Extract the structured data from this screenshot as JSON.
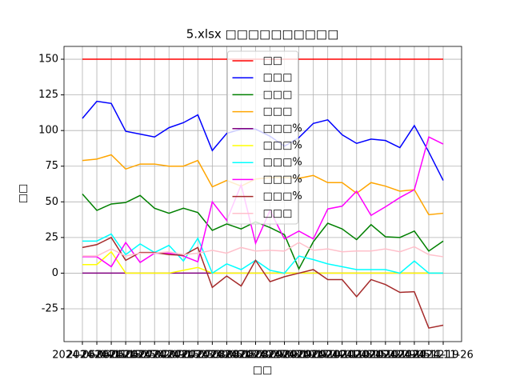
{
  "chart_data": {
    "type": "line",
    "title": "5.xlsx □□□□□□□□□□",
    "x_label": "□□",
    "y_label": "□□",
    "categories": [
      "2024-06-04",
      "2024-06-11",
      "2024-06-18",
      "2024-06-25",
      "2024-07-02",
      "2024-07-09",
      "2024-07-16",
      "2024-07-23",
      "2024-07-30",
      "2024-08-06",
      "2024-08-13",
      "2024-08-20",
      "2024-08-27",
      "2024-09-03",
      "2024-09-10",
      "2024-09-17",
      "2024-09-24",
      "2024-10-01",
      "2024-10-08",
      "2024-10-15",
      "2024-10-22",
      "2024-10-29",
      "2024-11-05",
      "2024-11-12",
      "2024-11-19",
      "2024-11-26"
    ],
    "ylim": [
      -48,
      159
    ],
    "yticks": [
      -25,
      0,
      25,
      50,
      75,
      100,
      125,
      150
    ],
    "grid": true,
    "legend": "upper center",
    "series": [
      {
        "name": "□□",
        "color": "red",
        "values": [
          150,
          150,
          150,
          150,
          150,
          150,
          150,
          150,
          150,
          150,
          150,
          150,
          150,
          150,
          150,
          150,
          150,
          150,
          150,
          150,
          150,
          150,
          150,
          150,
          150,
          150
        ]
      },
      {
        "name": "□□□",
        "color": "blue",
        "values": [
          108.5,
          120.5,
          119,
          99.5,
          97.5,
          95.5,
          102,
          105.5,
          111,
          86,
          98,
          101,
          101,
          96,
          89,
          95,
          105,
          107.5,
          97,
          91,
          94,
          93,
          88,
          103.5,
          85,
          65
        ]
      },
      {
        "name": "□□□",
        "color": "green",
        "values": [
          55.5,
          44,
          48.5,
          49.5,
          54.5,
          45.5,
          42,
          45.5,
          42.5,
          30,
          34.5,
          31,
          36,
          32,
          27,
          3,
          22,
          35,
          31,
          23.5,
          34,
          25.5,
          25,
          29.5,
          15.5,
          22.5
        ]
      },
      {
        "name": "□□□",
        "color": "orange",
        "values": [
          79,
          80,
          83,
          73,
          76.5,
          76.5,
          75,
          75,
          79,
          60.5,
          65,
          61,
          66,
          67,
          67,
          66.5,
          68.5,
          63.5,
          63.5,
          56,
          63.5,
          61,
          57.5,
          58.5,
          41,
          42
        ]
      },
      {
        "name": "□□□%",
        "color": "purple",
        "values": [
          0,
          0,
          0,
          0,
          0,
          0,
          0,
          0,
          0,
          0,
          0,
          0,
          0,
          0,
          0,
          0,
          0,
          0,
          0,
          0,
          0,
          0,
          0,
          0,
          0,
          0
        ]
      },
      {
        "name": "□□□%",
        "color": "yellow",
        "values": [
          6,
          6,
          15,
          0,
          0,
          0,
          0,
          2,
          4,
          0,
          0,
          0,
          0,
          0,
          0,
          0,
          0,
          0,
          0,
          0,
          0,
          0,
          0,
          0,
          0,
          0
        ]
      },
      {
        "name": "□□□%",
        "color": "cyan",
        "values": [
          22.5,
          22.5,
          27.5,
          13,
          20.5,
          14.5,
          19.5,
          8.5,
          24.5,
          0,
          6.5,
          2.5,
          9,
          2,
          0,
          12,
          9.5,
          6.5,
          4.5,
          2.5,
          2.5,
          2.5,
          0,
          8.5,
          0,
          0
        ]
      },
      {
        "name": "□□□%",
        "color": "magenta",
        "values": [
          11.5,
          11.5,
          4.5,
          21.5,
          7.5,
          14,
          14,
          12,
          8,
          50,
          37,
          62,
          21,
          44,
          24,
          29.5,
          24,
          45,
          47,
          57.5,
          40.5,
          46.5,
          53,
          58.5,
          95.5,
          90.5
        ]
      },
      {
        "name": "□□□%",
        "color": "brown",
        "values": [
          18,
          20,
          25,
          9,
          14.5,
          14.5,
          13,
          12.5,
          18,
          -10,
          -2,
          -9,
          9,
          -6,
          -2.5,
          0,
          2.5,
          -4.5,
          -4.5,
          -16.5,
          -4.5,
          -8,
          -13.5,
          -13,
          -38.5,
          -36.5
        ]
      },
      {
        "name": "□□□",
        "color": "pink",
        "values": [
          12,
          12,
          17,
          12,
          14,
          14,
          15,
          13,
          14,
          16,
          14,
          18,
          15.5,
          16,
          15.5,
          21.5,
          16,
          17,
          15,
          15.5,
          15.5,
          17,
          15,
          18.5,
          13,
          11.5
        ]
      }
    ]
  }
}
